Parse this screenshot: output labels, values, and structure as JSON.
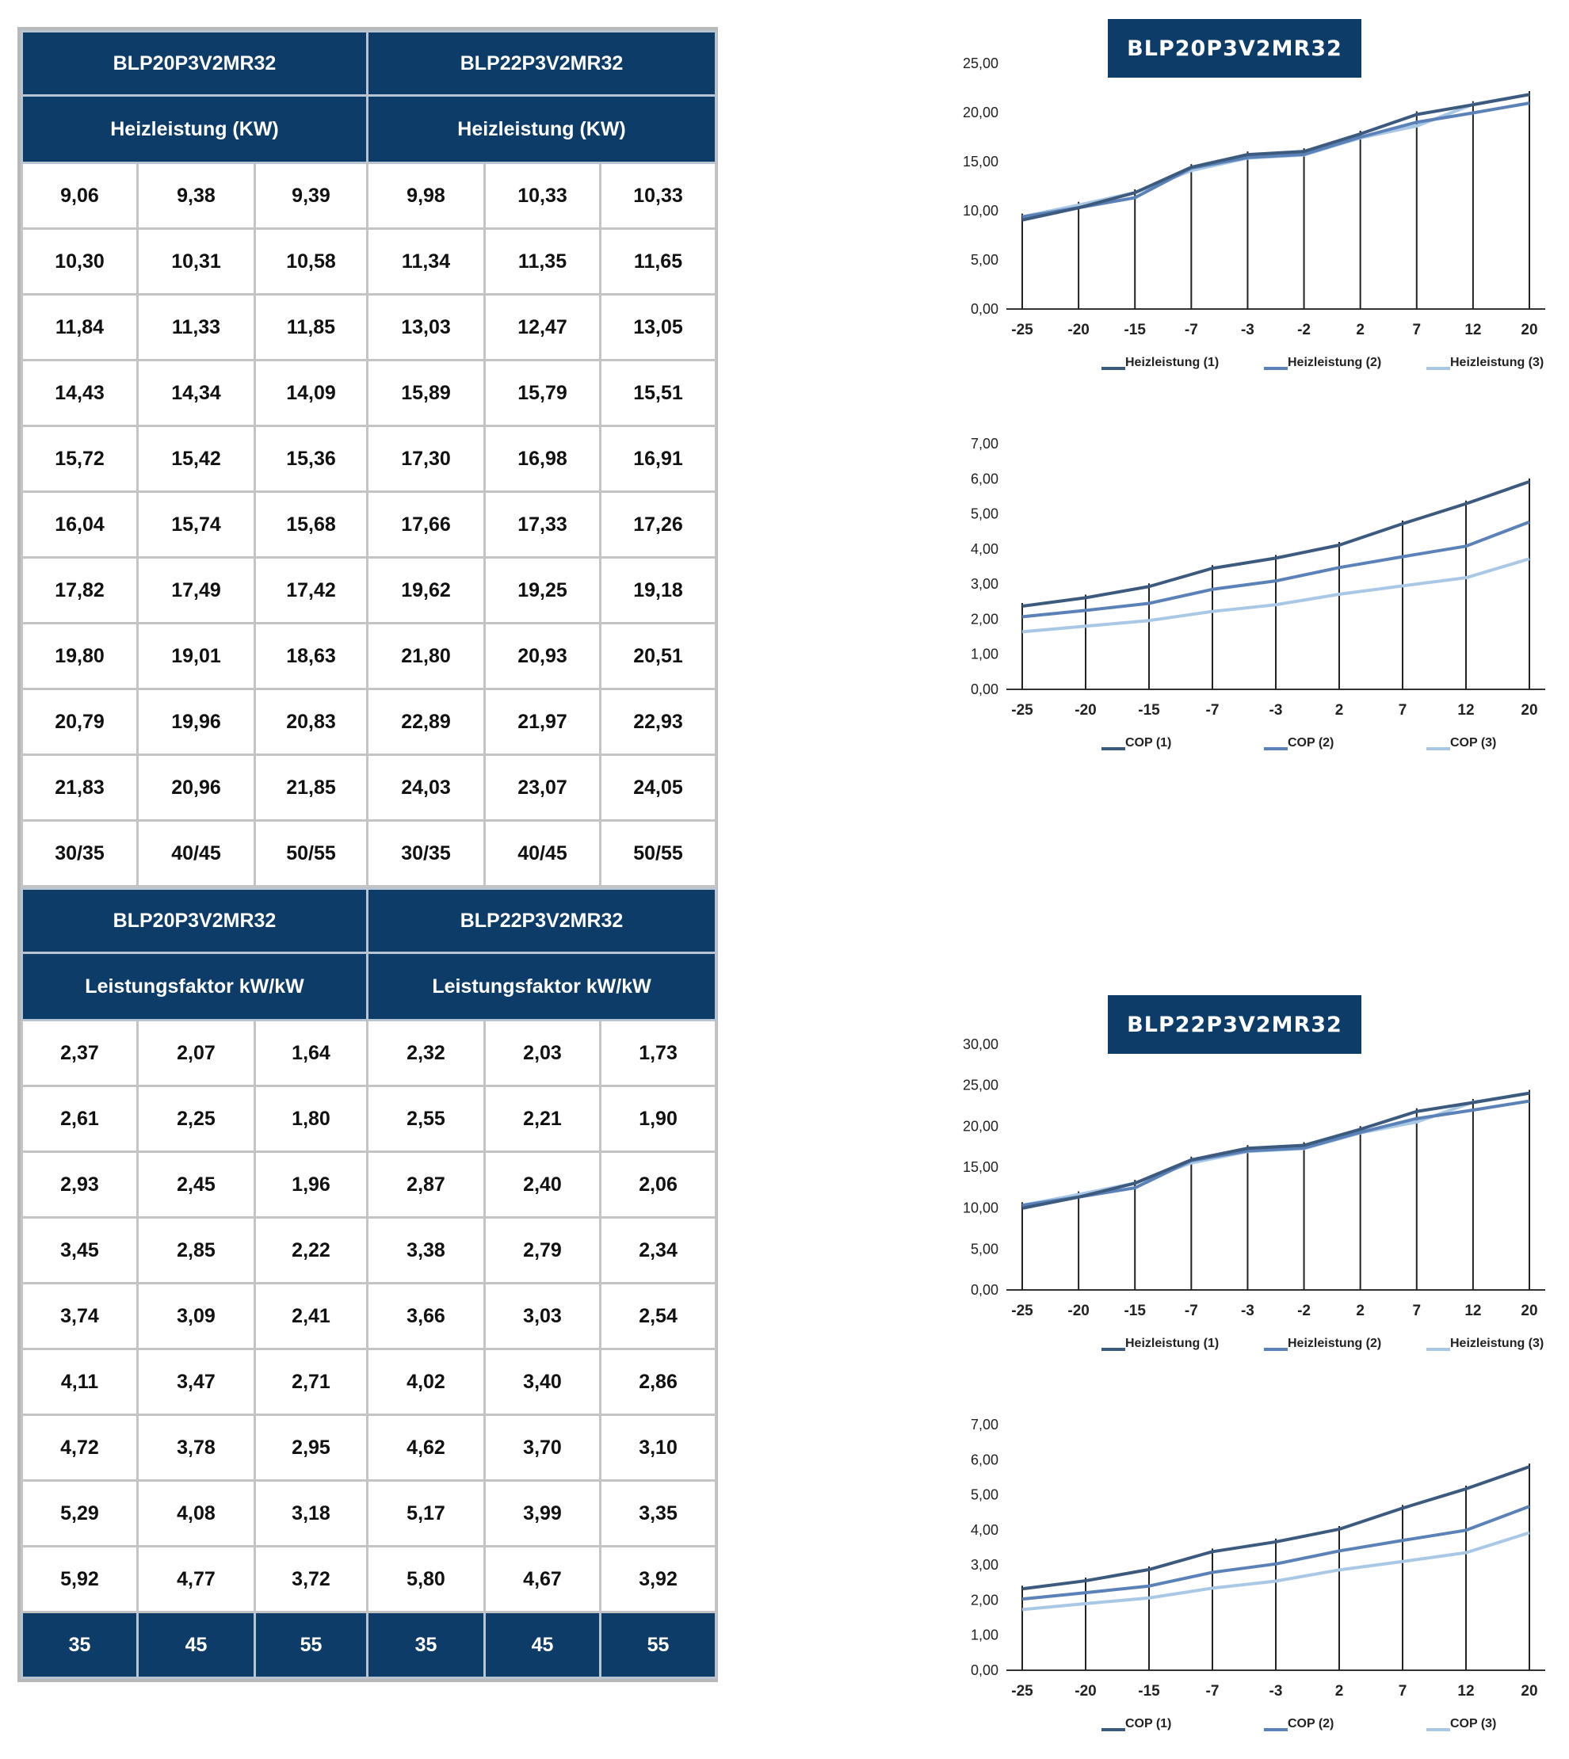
{
  "tables": {
    "heiz": {
      "models": [
        "BLP20P3V2MR32",
        "BLP22P3V2MR32"
      ],
      "measure": [
        "Heizleistung (KW)",
        "Heizleistung (KW)"
      ],
      "rows": [
        [
          "9,06",
          "9,38",
          "9,39",
          "9,98",
          "10,33",
          "10,33"
        ],
        [
          "10,30",
          "10,31",
          "10,58",
          "11,34",
          "11,35",
          "11,65"
        ],
        [
          "11,84",
          "11,33",
          "11,85",
          "13,03",
          "12,47",
          "13,05"
        ],
        [
          "14,43",
          "14,34",
          "14,09",
          "15,89",
          "15,79",
          "15,51"
        ],
        [
          "15,72",
          "15,42",
          "15,36",
          "17,30",
          "16,98",
          "16,91"
        ],
        [
          "16,04",
          "15,74",
          "15,68",
          "17,66",
          "17,33",
          "17,26"
        ],
        [
          "17,82",
          "17,49",
          "17,42",
          "19,62",
          "19,25",
          "19,18"
        ],
        [
          "19,80",
          "19,01",
          "18,63",
          "21,80",
          "20,93",
          "20,51"
        ],
        [
          "20,79",
          "19,96",
          "20,83",
          "22,89",
          "21,97",
          "22,93"
        ],
        [
          "21,83",
          "20,96",
          "21,85",
          "24,03",
          "23,07",
          "24,05"
        ]
      ],
      "footer": [
        "30/35",
        "40/45",
        "50/55",
        "30/35",
        "40/45",
        "50/55"
      ]
    },
    "cop": {
      "models": [
        "BLP20P3V2MR32",
        "BLP22P3V2MR32"
      ],
      "measure": [
        "Leistungsfaktor kW/kW",
        "Leistungsfaktor kW/kW"
      ],
      "rows": [
        [
          "2,37",
          "2,07",
          "1,64",
          "2,32",
          "2,03",
          "1,73"
        ],
        [
          "2,61",
          "2,25",
          "1,80",
          "2,55",
          "2,21",
          "1,90"
        ],
        [
          "2,93",
          "2,45",
          "1,96",
          "2,87",
          "2,40",
          "2,06"
        ],
        [
          "3,45",
          "2,85",
          "2,22",
          "3,38",
          "2,79",
          "2,34"
        ],
        [
          "3,74",
          "3,09",
          "2,41",
          "3,66",
          "3,03",
          "2,54"
        ],
        [
          "4,11",
          "3,47",
          "2,71",
          "4,02",
          "3,40",
          "2,86"
        ],
        [
          "4,72",
          "3,78",
          "2,95",
          "4,62",
          "3,70",
          "3,10"
        ],
        [
          "5,29",
          "4,08",
          "3,18",
          "5,17",
          "3,99",
          "3,35"
        ],
        [
          "5,92",
          "4,77",
          "3,72",
          "5,80",
          "4,67",
          "3,92"
        ]
      ],
      "footer": [
        "35",
        "45",
        "55",
        "35",
        "45",
        "55"
      ]
    }
  },
  "chart_data": [
    {
      "type": "line",
      "title": "BLP20P3V2MR32",
      "x": [
        "-25",
        "-20",
        "-15",
        "-7",
        "-3",
        "-2",
        "2",
        "7",
        "12",
        "20"
      ],
      "yticks": [
        "0,00",
        "5,00",
        "10,00",
        "15,00",
        "20,00",
        "25,00"
      ],
      "ylim": [
        0,
        25
      ],
      "grid": "vertical lines at categories",
      "legend_position": "bottom",
      "series": [
        {
          "name": "Heizleistung (1)",
          "values": [
            9.06,
            10.3,
            11.84,
            14.43,
            15.72,
            16.04,
            17.82,
            19.8,
            20.79,
            21.83
          ]
        },
        {
          "name": "Heizleistung (2)",
          "values": [
            9.38,
            10.31,
            11.33,
            14.34,
            15.42,
            15.74,
            17.49,
            19.01,
            19.96,
            20.96
          ]
        },
        {
          "name": "Heizleistung (3)",
          "values": [
            9.39,
            10.58,
            11.85,
            14.09,
            15.36,
            15.68,
            17.42,
            18.63,
            20.83,
            21.85
          ]
        }
      ],
      "colors": [
        "#3c5a7e",
        "#5b82b8",
        "#a9c8e6"
      ]
    },
    {
      "type": "line",
      "title": "",
      "x": [
        "-25",
        "-20",
        "-15",
        "-7",
        "-3",
        "2",
        "7",
        "12",
        "20"
      ],
      "yticks": [
        "0,00",
        "1,00",
        "2,00",
        "3,00",
        "4,00",
        "5,00",
        "6,00",
        "7,00"
      ],
      "ylim": [
        0,
        7
      ],
      "grid": "vertical lines at categories",
      "legend_position": "bottom",
      "series": [
        {
          "name": "COP (1)",
          "values": [
            2.37,
            2.61,
            2.93,
            3.45,
            3.74,
            4.11,
            4.72,
            5.29,
            5.92
          ]
        },
        {
          "name": "COP (2)",
          "values": [
            2.07,
            2.25,
            2.45,
            2.85,
            3.09,
            3.47,
            3.78,
            4.08,
            4.77
          ]
        },
        {
          "name": "COP (3)",
          "values": [
            1.64,
            1.8,
            1.96,
            2.22,
            2.41,
            2.71,
            2.95,
            3.18,
            3.72
          ]
        }
      ],
      "colors": [
        "#3c5a7e",
        "#5b82b8",
        "#a9c8e6"
      ]
    },
    {
      "type": "line",
      "title": "BLP22P3V2MR32",
      "x": [
        "-25",
        "-20",
        "-15",
        "-7",
        "-3",
        "-2",
        "2",
        "7",
        "12",
        "20"
      ],
      "yticks": [
        "0,00",
        "5,00",
        "10,00",
        "15,00",
        "20,00",
        "25,00",
        "30,00"
      ],
      "ylim": [
        0,
        30
      ],
      "grid": "vertical lines at categories",
      "legend_position": "bottom",
      "series": [
        {
          "name": "Heizleistung (1)",
          "values": [
            9.98,
            11.34,
            13.03,
            15.89,
            17.3,
            17.66,
            19.62,
            21.8,
            22.89,
            24.03
          ]
        },
        {
          "name": "Heizleistung (2)",
          "values": [
            10.33,
            11.35,
            12.47,
            15.79,
            16.98,
            17.33,
            19.25,
            20.93,
            21.97,
            23.07
          ]
        },
        {
          "name": "Heizleistung (3)",
          "values": [
            10.33,
            11.65,
            13.05,
            15.51,
            16.91,
            17.26,
            19.18,
            20.51,
            22.93,
            24.05
          ]
        }
      ],
      "colors": [
        "#3c5a7e",
        "#5b82b8",
        "#a9c8e6"
      ]
    },
    {
      "type": "line",
      "title": "",
      "x": [
        "-25",
        "-20",
        "-15",
        "-7",
        "-3",
        "2",
        "7",
        "12",
        "20"
      ],
      "yticks": [
        "0,00",
        "1,00",
        "2,00",
        "3,00",
        "4,00",
        "5,00",
        "6,00",
        "7,00"
      ],
      "ylim": [
        0,
        7
      ],
      "grid": "vertical lines at categories",
      "legend_position": "bottom",
      "series": [
        {
          "name": "COP (1)",
          "values": [
            2.32,
            2.55,
            2.87,
            3.38,
            3.66,
            4.02,
            4.62,
            5.17,
            5.8
          ]
        },
        {
          "name": "COP (2)",
          "values": [
            2.03,
            2.21,
            2.4,
            2.79,
            3.03,
            3.4,
            3.7,
            3.99,
            4.67
          ]
        },
        {
          "name": "COP (3)",
          "values": [
            1.73,
            1.9,
            2.06,
            2.34,
            2.54,
            2.86,
            3.1,
            3.35,
            3.92
          ]
        }
      ],
      "colors": [
        "#3c5a7e",
        "#5b82b8",
        "#a9c8e6"
      ]
    }
  ]
}
